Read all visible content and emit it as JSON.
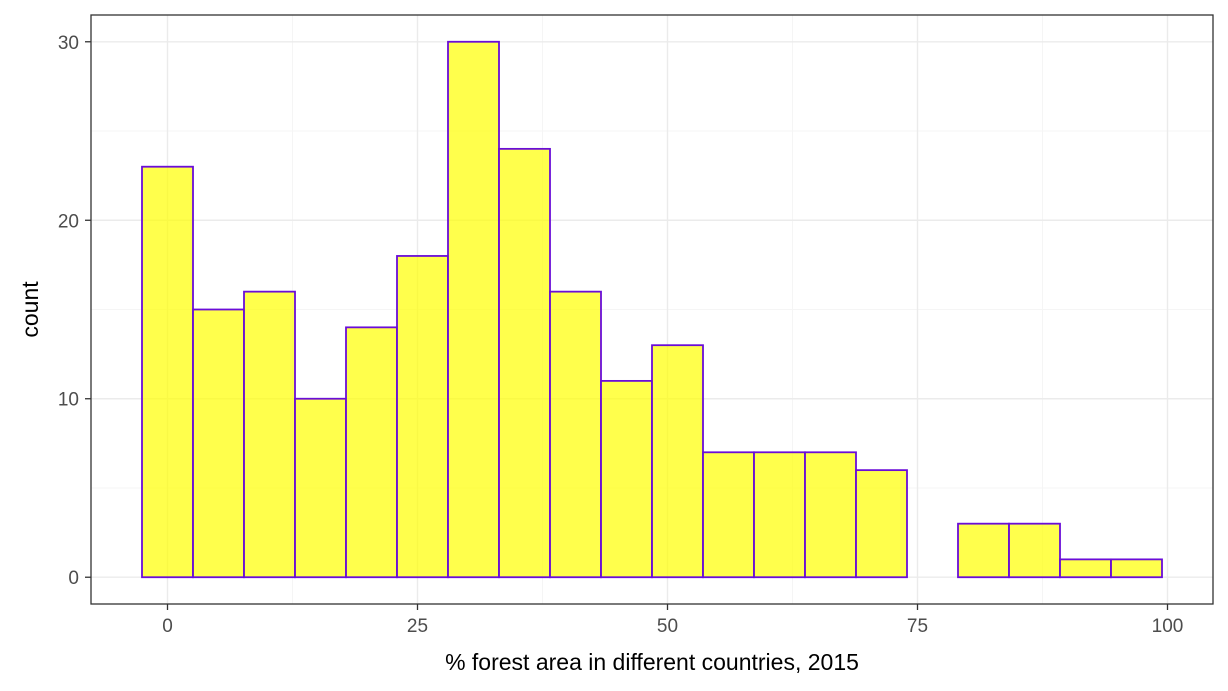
{
  "chart_data": {
    "type": "bar",
    "subtype": "histogram",
    "bin_width": 5.1,
    "bins": [
      {
        "x_start": -2.55,
        "x_end": 2.55,
        "count": 23
      },
      {
        "x_start": 2.55,
        "x_end": 7.65,
        "count": 15
      },
      {
        "x_start": 7.65,
        "x_end": 12.75,
        "count": 16
      },
      {
        "x_start": 12.75,
        "x_end": 17.85,
        "count": 10
      },
      {
        "x_start": 17.85,
        "x_end": 22.95,
        "count": 14
      },
      {
        "x_start": 22.95,
        "x_end": 28.05,
        "count": 18
      },
      {
        "x_start": 28.05,
        "x_end": 33.15,
        "count": 30
      },
      {
        "x_start": 33.15,
        "x_end": 38.25,
        "count": 24
      },
      {
        "x_start": 38.25,
        "x_end": 43.35,
        "count": 16
      },
      {
        "x_start": 43.35,
        "x_end": 48.45,
        "count": 11
      },
      {
        "x_start": 48.45,
        "x_end": 53.55,
        "count": 13
      },
      {
        "x_start": 53.55,
        "x_end": 58.65,
        "count": 7
      },
      {
        "x_start": 58.65,
        "x_end": 63.75,
        "count": 7
      },
      {
        "x_start": 63.75,
        "x_end": 68.85,
        "count": 7
      },
      {
        "x_start": 68.85,
        "x_end": 73.95,
        "count": 6
      },
      {
        "x_start": 73.95,
        "x_end": 79.05,
        "count": 0
      },
      {
        "x_start": 79.05,
        "x_end": 84.15,
        "count": 3
      },
      {
        "x_start": 84.15,
        "x_end": 89.25,
        "count": 3
      },
      {
        "x_start": 89.25,
        "x_end": 94.35,
        "count": 1
      },
      {
        "x_start": 94.35,
        "x_end": 99.45,
        "count": 1
      }
    ],
    "title": "",
    "xlabel": "% forest area in different countries, 2015",
    "ylabel": "count",
    "xlim": [
      -7.65,
      104.55
    ],
    "ylim": [
      -1.5,
      31.5
    ],
    "x_ticks": [
      0,
      25,
      50,
      75,
      100
    ],
    "y_ticks": [
      0,
      10,
      20,
      30
    ],
    "grid": true,
    "legend": "none",
    "colors": {
      "bar_fill": "#ffff00",
      "bar_fill_opacity": 0.7,
      "bar_stroke": "#6a0dd8",
      "grid_major": "#ebebeb",
      "grid_minor": "#f5f5f5",
      "panel_border": "#333333"
    }
  }
}
